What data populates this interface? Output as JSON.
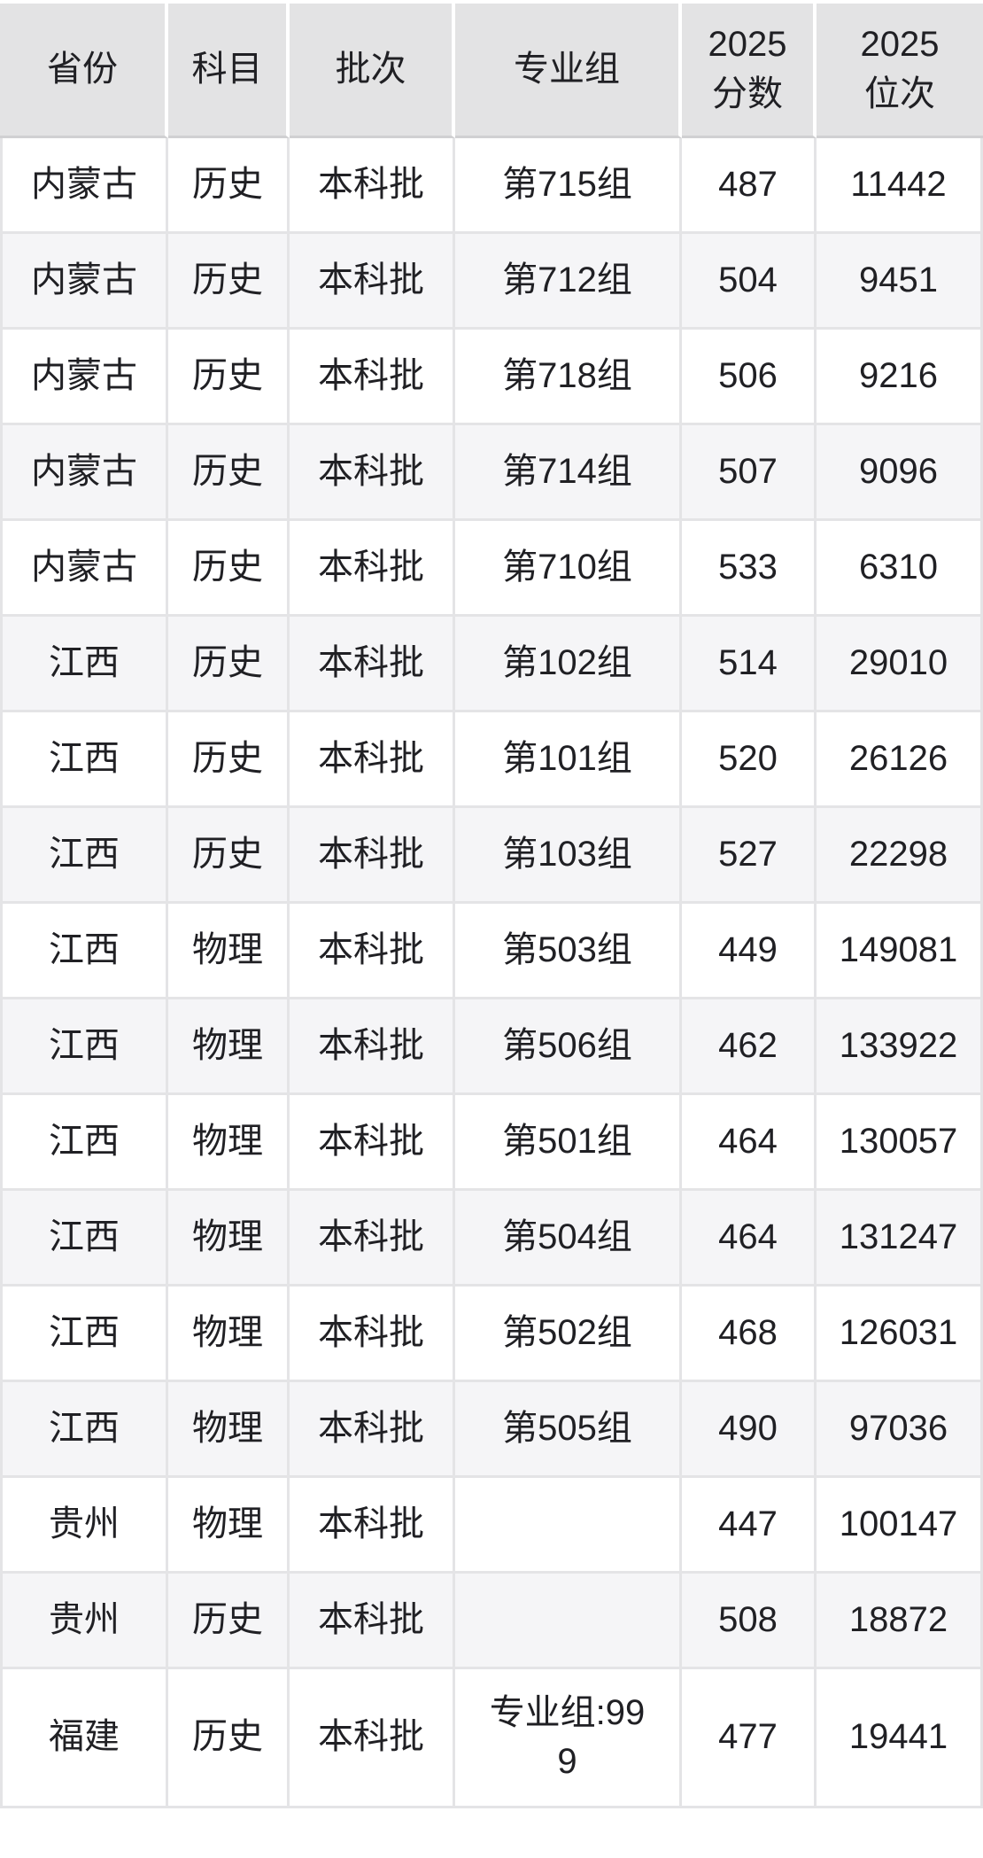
{
  "chart_data": {
    "type": "table",
    "columns": [
      "省份",
      "科目",
      "批次",
      "专业组",
      "2025\n分数",
      "2025\n位次"
    ],
    "rows": [
      [
        "内蒙古",
        "历史",
        "本科批",
        "第715组",
        "487",
        "11442"
      ],
      [
        "内蒙古",
        "历史",
        "本科批",
        "第712组",
        "504",
        "9451"
      ],
      [
        "内蒙古",
        "历史",
        "本科批",
        "第718组",
        "506",
        "9216"
      ],
      [
        "内蒙古",
        "历史",
        "本科批",
        "第714组",
        "507",
        "9096"
      ],
      [
        "内蒙古",
        "历史",
        "本科批",
        "第710组",
        "533",
        "6310"
      ],
      [
        "江西",
        "历史",
        "本科批",
        "第102组",
        "514",
        "29010"
      ],
      [
        "江西",
        "历史",
        "本科批",
        "第101组",
        "520",
        "26126"
      ],
      [
        "江西",
        "历史",
        "本科批",
        "第103组",
        "527",
        "22298"
      ],
      [
        "江西",
        "物理",
        "本科批",
        "第503组",
        "449",
        "149081"
      ],
      [
        "江西",
        "物理",
        "本科批",
        "第506组",
        "462",
        "133922"
      ],
      [
        "江西",
        "物理",
        "本科批",
        "第501组",
        "464",
        "130057"
      ],
      [
        "江西",
        "物理",
        "本科批",
        "第504组",
        "464",
        "131247"
      ],
      [
        "江西",
        "物理",
        "本科批",
        "第502组",
        "468",
        "126031"
      ],
      [
        "江西",
        "物理",
        "本科批",
        "第505组",
        "490",
        "97036"
      ],
      [
        "贵州",
        "物理",
        "本科批",
        "",
        "447",
        "100147"
      ],
      [
        "贵州",
        "历史",
        "本科批",
        "",
        "508",
        "18872"
      ],
      [
        "福建",
        "历史",
        "本科批",
        "专业组:999",
        "477",
        "19441"
      ]
    ]
  },
  "colors": {
    "header_background": "#e3e3e4",
    "row_alt_background": "#f5f5f7",
    "row_background": "#ffffff",
    "gridline": "#e4e4e6",
    "header_divider": "#d0d0d2",
    "text": "#202024"
  }
}
